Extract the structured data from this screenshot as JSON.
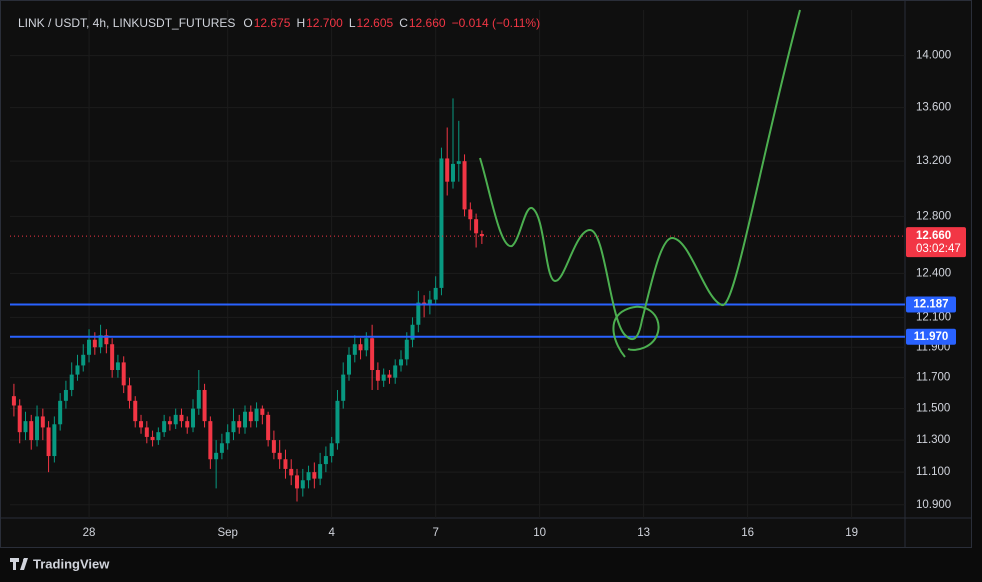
{
  "chart_data": {
    "type": "candlestick",
    "title": "LINK / USDT, 4h, LINKUSDT_FUTURES",
    "ohlc_header": [
      {
        "label": "O",
        "value": "12.675"
      },
      {
        "label": "H",
        "value": "12.700"
      },
      {
        "label": "L",
        "value": "12.605"
      },
      {
        "label": "C",
        "value": "12.660"
      }
    ],
    "change": "−0.014 (−0.11%)",
    "up_color": "#089981",
    "down_color": "#f23645",
    "log_scale": true,
    "grid": true,
    "xlim": [
      25.72,
      51.54
    ],
    "ylim": [
      10.82,
      14.36
    ],
    "xticks": [
      28,
      {
        "value": 32,
        "label": "Sep"
      },
      {
        "value": 35,
        "label": "4"
      },
      {
        "value": 38,
        "label": "7"
      },
      {
        "value": 41,
        "label": "10"
      },
      {
        "value": 44,
        "label": "13"
      },
      {
        "value": 47,
        "label": "16"
      },
      {
        "value": 50,
        "label": "19"
      }
    ],
    "yticks": [
      {
        "value": 14,
        "label": "14.000"
      },
      {
        "value": 13.6,
        "label": "13.600"
      },
      {
        "value": 13.2,
        "label": "13.200"
      },
      {
        "value": 12.8,
        "label": "12.800"
      },
      {
        "value": 12.4,
        "label": "12.400"
      },
      {
        "value": 12.1,
        "label": "12.100"
      },
      {
        "value": 11.9,
        "label": "11.900"
      },
      {
        "value": 11.7,
        "label": "11.700"
      },
      {
        "value": 11.5,
        "label": "11.500"
      },
      {
        "value": 11.3,
        "label": "11.300"
      },
      {
        "value": 11.1,
        "label": "11.100"
      },
      {
        "value": 10.9,
        "label": "10.900"
      }
    ],
    "x": [
      25.833,
      26,
      26.167,
      26.333,
      26.5,
      26.667,
      26.833,
      27,
      27.167,
      27.333,
      27.5,
      27.667,
      27.833,
      28,
      28.167,
      28.333,
      28.5,
      28.667,
      28.833,
      29,
      29.167,
      29.333,
      29.5,
      29.667,
      29.833,
      30,
      30.167,
      30.333,
      30.5,
      30.667,
      30.833,
      31,
      31.167,
      31.333,
      31.5,
      31.667,
      31.833,
      32,
      32.167,
      32.333,
      32.5,
      32.667,
      32.833,
      33,
      33.167,
      33.333,
      33.5,
      33.667,
      33.833,
      34,
      34.167,
      34.333,
      34.5,
      34.667,
      34.833,
      35,
      35.167,
      35.333,
      35.5,
      35.667,
      35.833,
      36,
      36.167,
      36.333,
      36.5,
      36.667,
      36.833,
      37,
      37.167,
      37.333,
      37.5,
      37.667,
      37.833,
      38,
      38.167,
      38.333,
      38.5,
      38.667,
      38.833,
      39,
      39.167,
      39.333
    ],
    "open": [
      11.58,
      11.52,
      11.35,
      11.42,
      11.3,
      11.45,
      11.38,
      11.2,
      11.4,
      11.55,
      11.62,
      11.72,
      11.78,
      11.85,
      11.95,
      11.9,
      11.98,
      11.92,
      11.75,
      11.8,
      11.65,
      11.55,
      11.42,
      11.38,
      11.32,
      11.3,
      11.35,
      11.42,
      11.4,
      11.46,
      11.42,
      11.38,
      11.5,
      11.62,
      11.42,
      11.18,
      11.22,
      11.28,
      11.35,
      11.42,
      11.38,
      11.48,
      11.42,
      11.5,
      11.46,
      11.3,
      11.22,
      11.18,
      11.12,
      11.08,
      11.0,
      11.05,
      11.1,
      11.06,
      11.15,
      11.2,
      11.28,
      11.55,
      11.72,
      11.85,
      11.92,
      11.88,
      11.96,
      11.75,
      11.68,
      11.72,
      11.7,
      11.78,
      11.82,
      11.95,
      12.05,
      12.2,
      12.18,
      12.22,
      12.3,
      13.22,
      13.05,
      13.18,
      13.2,
      12.85,
      12.78,
      12.675
    ],
    "high": [
      11.66,
      11.56,
      11.48,
      11.46,
      11.52,
      11.5,
      11.42,
      11.45,
      11.6,
      11.68,
      11.8,
      11.85,
      11.92,
      12.02,
      12.0,
      12.05,
      12.02,
      11.96,
      11.85,
      11.84,
      11.7,
      11.58,
      11.46,
      11.42,
      11.36,
      11.38,
      11.46,
      11.45,
      11.5,
      11.5,
      11.45,
      11.56,
      11.75,
      11.66,
      11.45,
      11.3,
      11.34,
      11.4,
      11.5,
      11.46,
      11.52,
      11.52,
      11.54,
      11.52,
      11.48,
      11.36,
      11.3,
      11.24,
      11.18,
      11.12,
      11.12,
      11.14,
      11.16,
      11.22,
      11.26,
      11.32,
      11.62,
      11.8,
      11.9,
      11.98,
      11.96,
      12.0,
      12.05,
      11.8,
      11.76,
      11.75,
      11.82,
      11.88,
      12.0,
      12.1,
      12.28,
      12.25,
      12.28,
      12.38,
      13.3,
      13.45,
      13.67,
      13.5,
      13.25,
      12.9,
      12.82,
      12.7
    ],
    "low": [
      11.45,
      11.28,
      11.3,
      11.24,
      11.26,
      11.3,
      11.1,
      11.16,
      11.36,
      11.5,
      11.58,
      11.68,
      11.74,
      11.8,
      11.85,
      11.86,
      11.86,
      11.7,
      11.7,
      11.6,
      11.5,
      11.38,
      11.34,
      11.28,
      11.26,
      11.27,
      11.32,
      11.36,
      11.37,
      11.38,
      11.34,
      11.35,
      11.46,
      11.38,
      11.12,
      11.0,
      11.18,
      11.24,
      11.3,
      11.34,
      11.34,
      11.38,
      11.38,
      11.4,
      11.26,
      11.18,
      11.12,
      11.06,
      11.02,
      10.92,
      10.95,
      11.0,
      11.0,
      11.02,
      11.1,
      11.16,
      11.24,
      11.5,
      11.68,
      11.8,
      11.82,
      11.84,
      11.62,
      11.62,
      11.64,
      11.66,
      11.66,
      11.74,
      11.78,
      11.9,
      12.0,
      12.1,
      12.12,
      12.18,
      12.25,
      12.95,
      13.0,
      13.05,
      12.8,
      12.7,
      12.58,
      12.605
    ],
    "close": [
      11.52,
      11.35,
      11.42,
      11.3,
      11.45,
      11.38,
      11.2,
      11.4,
      11.55,
      11.62,
      11.72,
      11.78,
      11.85,
      11.95,
      11.9,
      11.98,
      11.92,
      11.75,
      11.8,
      11.65,
      11.55,
      11.42,
      11.38,
      11.32,
      11.3,
      11.35,
      11.42,
      11.4,
      11.46,
      11.42,
      11.38,
      11.5,
      11.62,
      11.42,
      11.18,
      11.22,
      11.28,
      11.35,
      11.42,
      11.38,
      11.48,
      11.42,
      11.5,
      11.46,
      11.3,
      11.22,
      11.18,
      11.12,
      11.08,
      11.0,
      11.05,
      11.1,
      11.06,
      11.15,
      11.2,
      11.28,
      11.55,
      11.72,
      11.85,
      11.92,
      11.88,
      11.96,
      11.75,
      11.68,
      11.72,
      11.7,
      11.78,
      11.82,
      11.95,
      12.05,
      12.2,
      12.18,
      12.22,
      12.3,
      13.22,
      13.05,
      13.18,
      13.2,
      12.85,
      12.78,
      12.68,
      12.66
    ],
    "levels": [
      {
        "value": 12.187,
        "label": "12.187",
        "color": "#2962ff"
      },
      {
        "value": 11.97,
        "label": "11.970",
        "color": "#2962ff"
      }
    ],
    "last_price": {
      "value": 12.66,
      "label": "12.660",
      "countdown": "03:02:47",
      "color": "#f23645"
    },
    "brand": "TradingView"
  }
}
